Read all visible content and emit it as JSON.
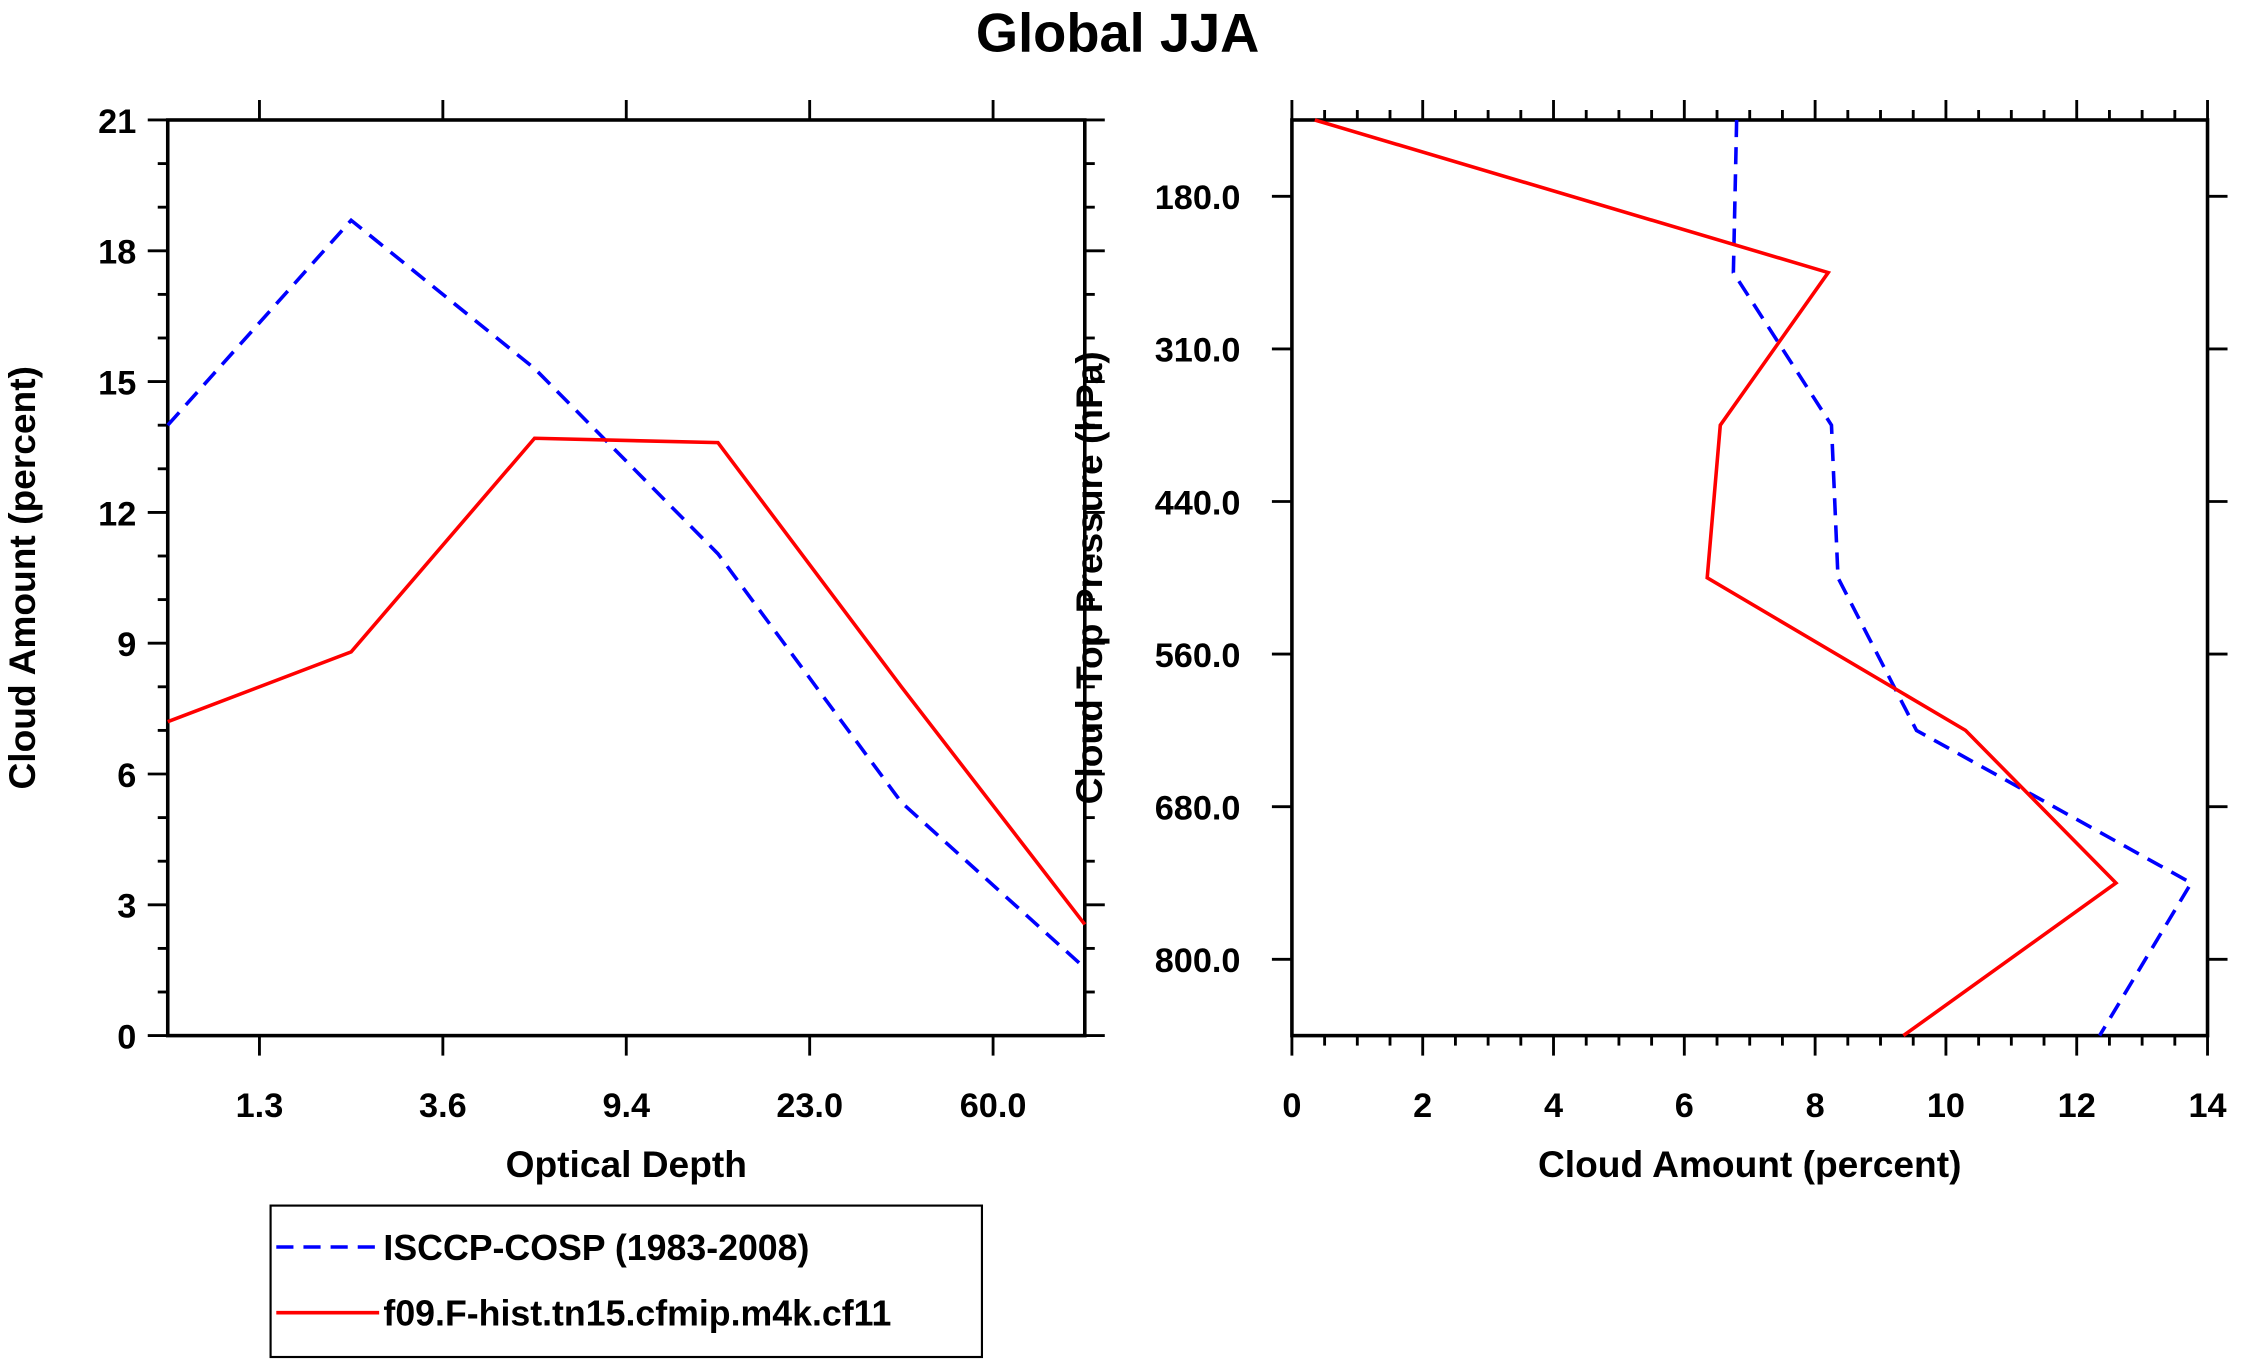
{
  "title": "Global JJA",
  "colors": {
    "obs": "#0000ff",
    "model": "#ff0000",
    "axis": "#000000"
  },
  "legend": {
    "placement": "bottom-left",
    "entries": [
      {
        "label": "ISCCP-COSP (1983-2008)",
        "style": "dashed",
        "color": "#0000ff"
      },
      {
        "label": "f09.F-hist.tn15.cfmip.m4k.cf11",
        "style": "solid",
        "color": "#ff0000"
      }
    ]
  },
  "chart_data": [
    {
      "type": "line",
      "xlabel": "Optical Depth",
      "ylabel": "Cloud Amount (percent)",
      "x_bin_index": [
        0,
        1,
        2,
        3,
        4,
        5
      ],
      "x_tick_labels": [
        "1.3",
        "3.6",
        "9.4",
        "23.0",
        "60.0"
      ],
      "ylim": [
        0,
        21
      ],
      "y_ticks": [
        "0",
        "3",
        "6",
        "9",
        "12",
        "15",
        "18",
        "21"
      ],
      "series": [
        {
          "name": "ISCCP-COSP (1983-2008)",
          "values": [
            14.0,
            18.7,
            15.3,
            11.05,
            5.35,
            1.55
          ]
        },
        {
          "name": "f09.F-hist.tn15.cfmip.m4k.cf11",
          "values": [
            7.2,
            8.8,
            13.7,
            13.6,
            8.0,
            2.55
          ]
        }
      ]
    },
    {
      "type": "line",
      "xlabel": "Cloud Amount (percent)",
      "ylabel": "Cloud Top Pressure (hPa)",
      "xlim": [
        0,
        14
      ],
      "x_ticks": [
        "0",
        "2",
        "4",
        "6",
        "8",
        "10",
        "12",
        "14"
      ],
      "y_level_index": [
        0,
        1,
        2,
        3,
        4,
        5,
        6
      ],
      "y_tick_labels": [
        "180.0",
        "310.0",
        "440.0",
        "560.0",
        "680.0",
        "800.0"
      ],
      "series": [
        {
          "name": "ISCCP-COSP (1983-2008)",
          "values": [
            6.8,
            6.75,
            8.25,
            8.35,
            9.55,
            13.75,
            12.35
          ]
        },
        {
          "name": "f09.F-hist.tn15.cfmip.m4k.cf11",
          "values": [
            0.35,
            8.2,
            6.55,
            6.35,
            10.3,
            12.6,
            9.35
          ]
        }
      ]
    }
  ]
}
